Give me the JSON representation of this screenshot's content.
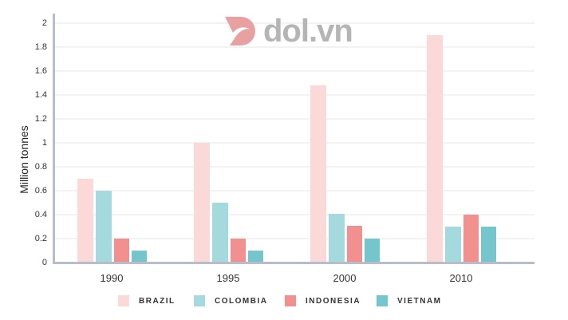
{
  "chart_data": {
    "type": "bar",
    "title": "",
    "xlabel": "",
    "ylabel": "Million tonnes",
    "ylim": [
      0,
      2
    ],
    "yticks": [
      "0",
      "0.2",
      "0.4",
      "0.6",
      "0.8",
      "1",
      "1.2",
      "1.4",
      "1.6",
      "1.8",
      "2"
    ],
    "categories": [
      "1990",
      "1995",
      "2000",
      "2010"
    ],
    "series": [
      {
        "name": "BRAZIL",
        "color": "#fbd9d9",
        "values": [
          0.7,
          1.0,
          1.48,
          1.9
        ]
      },
      {
        "name": "COLOMBIA",
        "color": "#a4dadd",
        "values": [
          0.6,
          0.5,
          0.41,
          0.3
        ]
      },
      {
        "name": "INDONESIA",
        "color": "#f28f8f",
        "values": [
          0.2,
          0.2,
          0.31,
          0.4
        ]
      },
      {
        "name": "VIETNAM",
        "color": "#74c5cc",
        "values": [
          0.1,
          0.1,
          0.2,
          0.3
        ]
      }
    ],
    "grid": true,
    "legend_position": "bottom"
  },
  "watermark": {
    "text": "dol.vn",
    "color": "#e8a0a0"
  }
}
